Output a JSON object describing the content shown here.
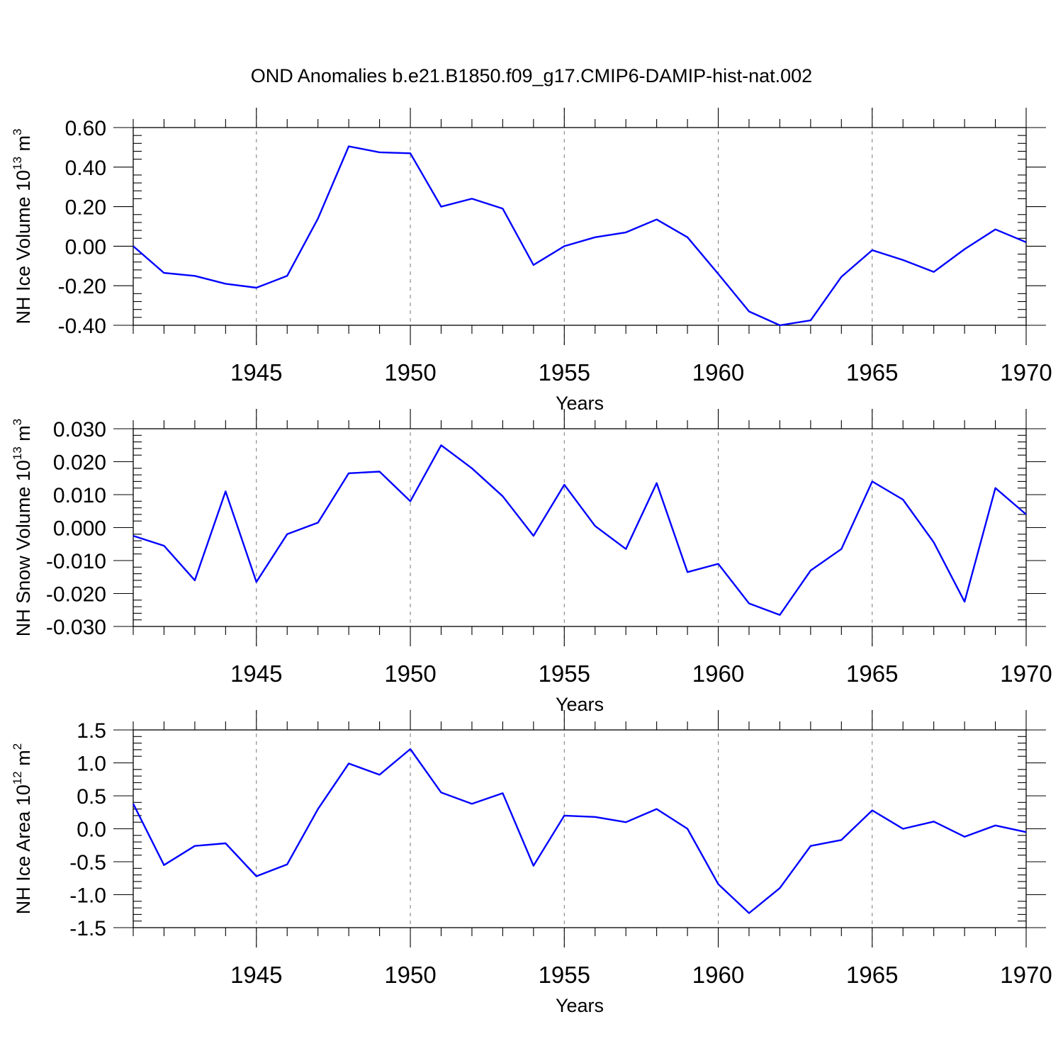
{
  "figure_title": "OND Anomalies b.e21.B1850.f09_g17.CMIP6-DAMIP-hist-nat.002",
  "colors": {
    "line": "#0000ff",
    "axes": "#000000",
    "grid": "#777777"
  },
  "chart_data": [
    {
      "type": "line",
      "title": "",
      "xlabel": "Years",
      "ylabel": "NH Ice Volume 10",
      "ylabel_exponent": "13",
      "ylabel_unit": "m",
      "ylabel_unit_exponent": "3",
      "xlim": [
        1941,
        1970
      ],
      "ylim": [
        -0.4,
        0.6
      ],
      "xticks": [
        1945,
        1950,
        1955,
        1960,
        1965,
        1970
      ],
      "yticks": [
        "-0.40",
        "-0.20",
        "0.00",
        "0.20",
        "0.40",
        "0.60"
      ],
      "ytick_values": [
        -0.4,
        -0.2,
        0,
        0.2,
        0.4,
        0.6
      ],
      "grid": "vertical dashed at labeled years",
      "x": [
        1941,
        1942,
        1943,
        1944,
        1945,
        1946,
        1947,
        1948,
        1949,
        1950,
        1951,
        1952,
        1953,
        1954,
        1955,
        1956,
        1957,
        1958,
        1959,
        1960,
        1961,
        1962,
        1963,
        1964,
        1965,
        1966,
        1967,
        1968,
        1969,
        1970
      ],
      "series": [
        {
          "values": [
            0.0,
            -0.135,
            -0.15,
            -0.19,
            -0.21,
            -0.15,
            0.14,
            0.505,
            0.475,
            0.47,
            0.2,
            0.24,
            0.19,
            -0.095,
            0.0,
            0.045,
            0.07,
            0.135,
            0.045,
            -0.14,
            -0.33,
            -0.4,
            -0.375,
            -0.155,
            -0.02,
            -0.07,
            -0.13,
            -0.015,
            0.085,
            0.02
          ]
        }
      ]
    },
    {
      "type": "line",
      "title": "",
      "xlabel": "Years",
      "ylabel": "NH Snow Volume 10",
      "ylabel_exponent": "13",
      "ylabel_unit": "m",
      "ylabel_unit_exponent": "3",
      "xlim": [
        1941,
        1970
      ],
      "ylim": [
        -0.03,
        0.03
      ],
      "xticks": [
        1945,
        1950,
        1955,
        1960,
        1965,
        1970
      ],
      "yticks": [
        "-0.030",
        "-0.020",
        "-0.010",
        "0.000",
        "0.010",
        "0.020",
        "0.030"
      ],
      "ytick_values": [
        -0.03,
        -0.02,
        -0.01,
        0,
        0.01,
        0.02,
        0.03
      ],
      "grid": "vertical dashed at labeled years",
      "x": [
        1941,
        1942,
        1943,
        1944,
        1945,
        1946,
        1947,
        1948,
        1949,
        1950,
        1951,
        1952,
        1953,
        1954,
        1955,
        1956,
        1957,
        1958,
        1959,
        1960,
        1961,
        1962,
        1963,
        1964,
        1965,
        1966,
        1967,
        1968,
        1969,
        1970
      ],
      "series": [
        {
          "values": [
            -0.0025,
            -0.0055,
            -0.016,
            0.011,
            -0.0165,
            -0.002,
            0.0015,
            0.0165,
            0.017,
            0.008,
            0.025,
            0.018,
            0.0095,
            -0.0025,
            0.013,
            0.0005,
            -0.0065,
            0.0135,
            -0.0135,
            -0.011,
            -0.023,
            -0.0265,
            -0.013,
            -0.0065,
            0.014,
            0.0085,
            -0.0045,
            -0.0225,
            0.012,
            0.004
          ]
        }
      ]
    },
    {
      "type": "line",
      "title": "",
      "xlabel": "Years",
      "ylabel": "NH Ice Area 10",
      "ylabel_exponent": "12",
      "ylabel_unit": "m",
      "ylabel_unit_exponent": "2",
      "xlim": [
        1941,
        1970
      ],
      "ylim": [
        -1.5,
        1.5
      ],
      "xticks": [
        1945,
        1950,
        1955,
        1960,
        1965,
        1970
      ],
      "yticks": [
        "-1.5",
        "-1.0",
        "-0.5",
        "0.0",
        "0.5",
        "1.0",
        "1.5"
      ],
      "ytick_values": [
        -1.5,
        -1.0,
        -0.5,
        0,
        0.5,
        1.0,
        1.5
      ],
      "grid": "vertical dashed at labeled years",
      "x": [
        1941,
        1942,
        1943,
        1944,
        1945,
        1946,
        1947,
        1948,
        1949,
        1950,
        1951,
        1952,
        1953,
        1954,
        1955,
        1956,
        1957,
        1958,
        1959,
        1960,
        1961,
        1962,
        1963,
        1964,
        1965,
        1966,
        1967,
        1968,
        1969,
        1970
      ],
      "series": [
        {
          "values": [
            0.38,
            -0.55,
            -0.26,
            -0.22,
            -0.72,
            -0.54,
            0.3,
            0.99,
            0.82,
            1.21,
            0.55,
            0.38,
            0.54,
            -0.56,
            0.2,
            0.18,
            0.1,
            0.3,
            0.0,
            -0.84,
            -1.28,
            -0.9,
            -0.26,
            -0.17,
            0.28,
            0.0,
            0.11,
            -0.12,
            0.05,
            -0.05
          ]
        }
      ]
    }
  ]
}
